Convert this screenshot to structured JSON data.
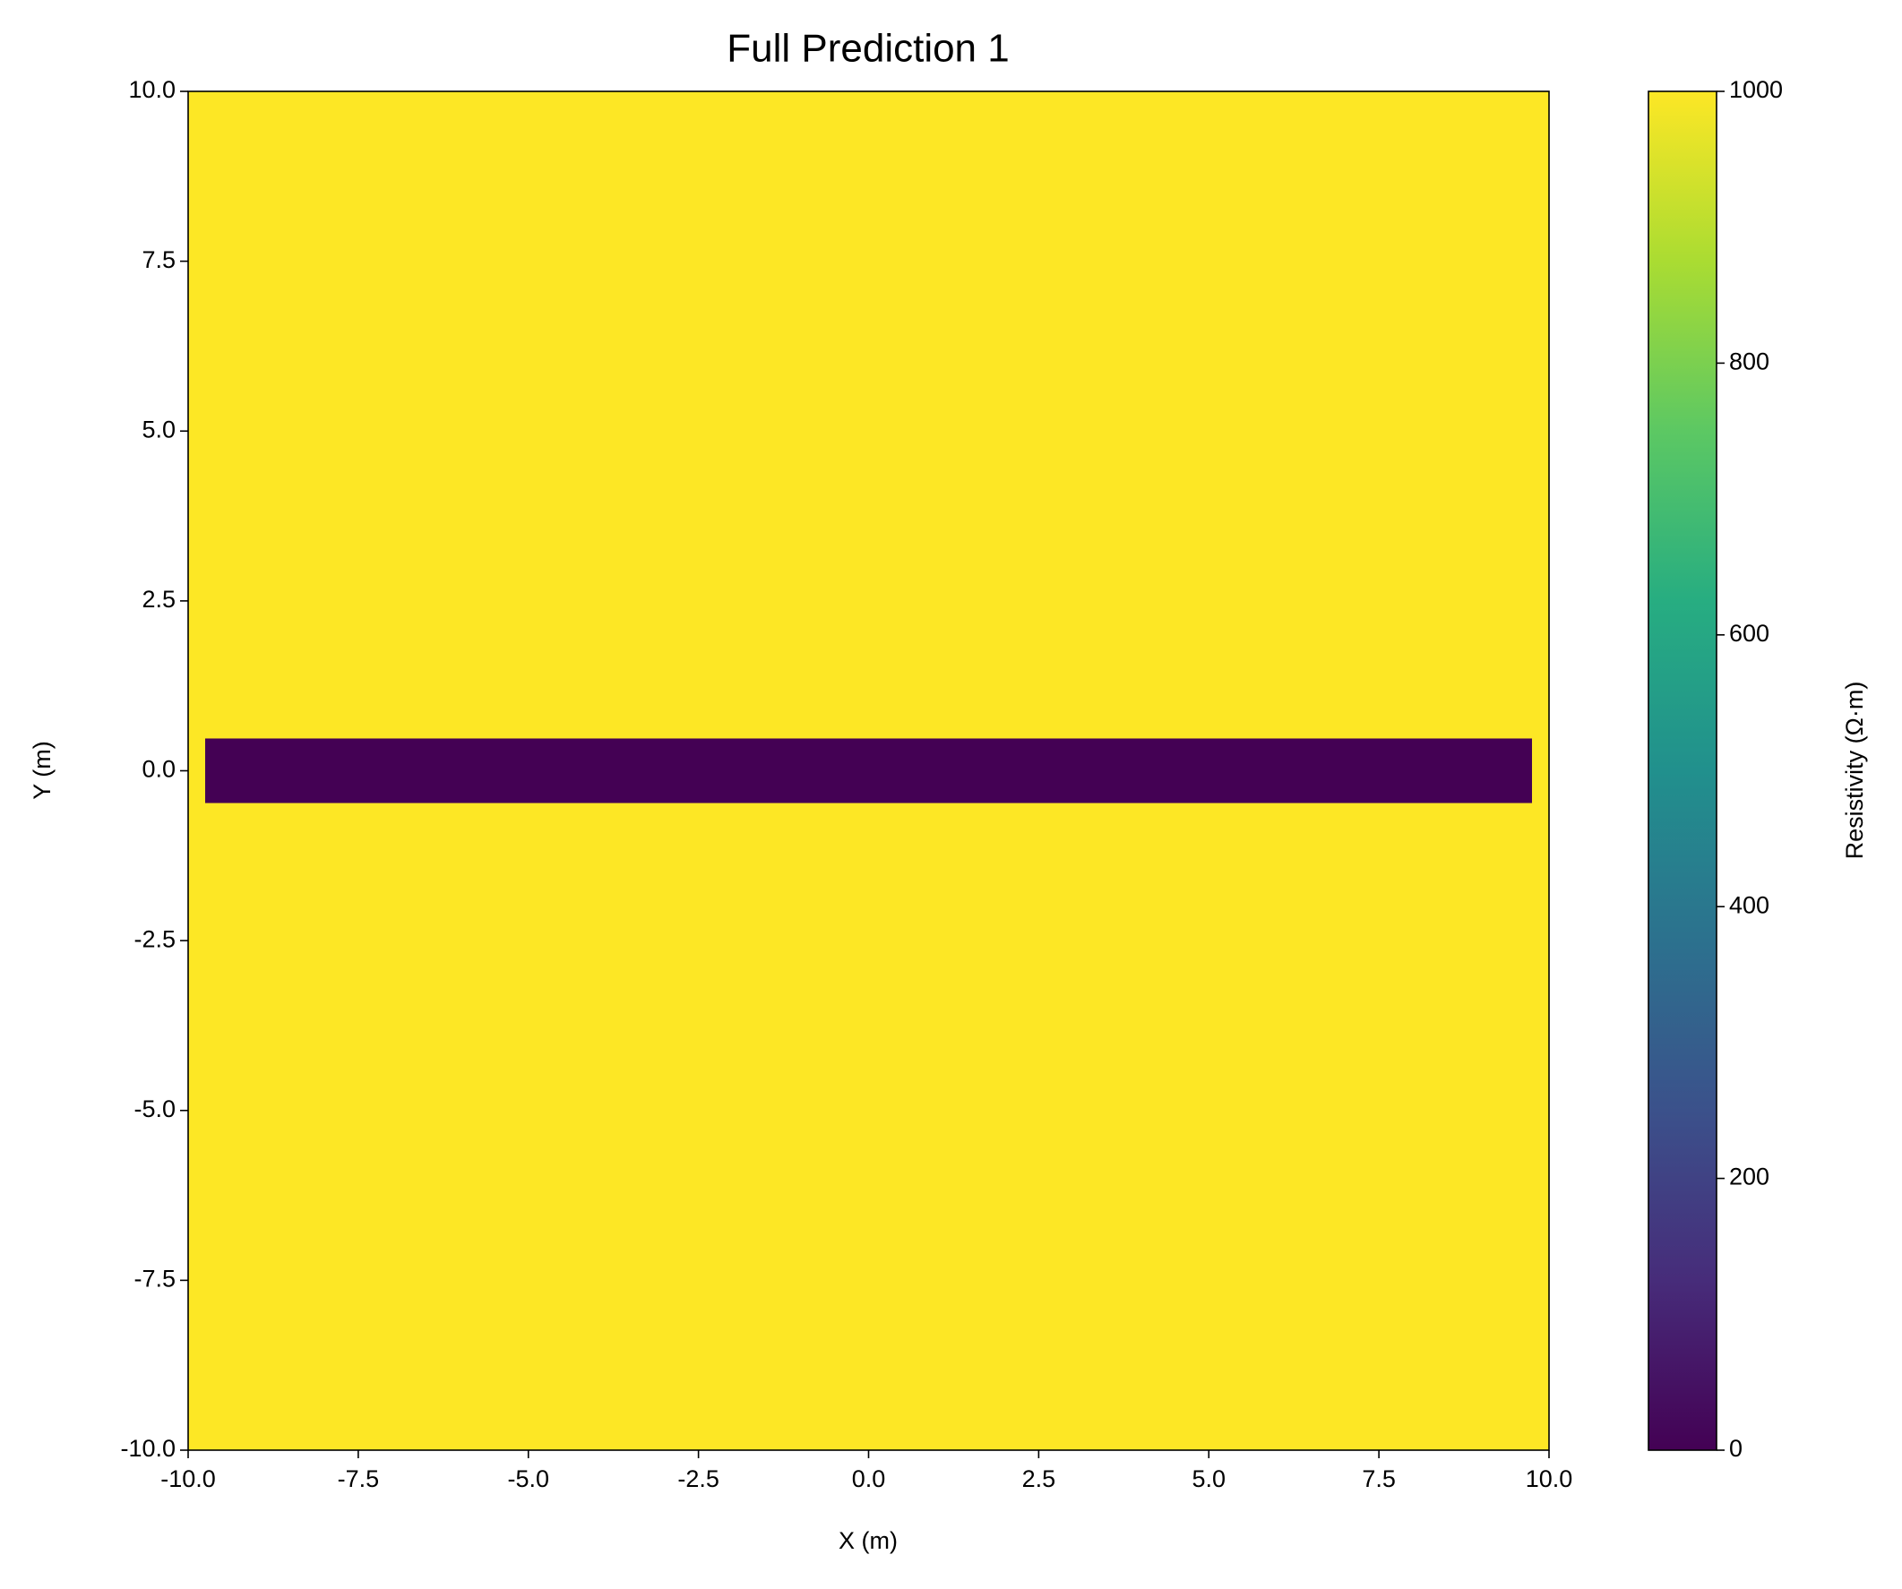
{
  "chart_data": {
    "type": "heatmap",
    "title": "Full Prediction 1",
    "x_label": "X (m)",
    "y_label": "Y (m)",
    "colorbar_label": "Resistivity (Ω·m)",
    "colormap": "viridis",
    "cells": [
      {
        "x": [
          -10,
          10
        ],
        "y": [
          -10,
          10
        ],
        "value": 1000
      },
      {
        "x": [
          -9.75,
          9.75
        ],
        "y": [
          -0.475,
          0.475
        ],
        "value": 0
      }
    ],
    "xlim": [
      -10,
      10
    ],
    "ylim": [
      -10,
      10
    ],
    "clim": [
      0,
      1000
    ],
    "xticks": [
      {
        "value": -10,
        "label": "-10.0"
      },
      {
        "value": -7.5,
        "label": "-7.5"
      },
      {
        "value": -5,
        "label": "-5.0"
      },
      {
        "value": -2.5,
        "label": "-2.5"
      },
      {
        "value": 0,
        "label": "0.0"
      },
      {
        "value": 2.5,
        "label": "2.5"
      },
      {
        "value": 5,
        "label": "5.0"
      },
      {
        "value": 7.5,
        "label": "7.5"
      },
      {
        "value": 10,
        "label": "10.0"
      }
    ],
    "yticks": [
      {
        "value": -10,
        "label": "-10.0"
      },
      {
        "value": -7.5,
        "label": "-7.5"
      },
      {
        "value": -5,
        "label": "-5.0"
      },
      {
        "value": -2.5,
        "label": "-2.5"
      },
      {
        "value": 0,
        "label": "0.0"
      },
      {
        "value": 2.5,
        "label": "2.5"
      },
      {
        "value": 5,
        "label": "5.0"
      },
      {
        "value": 7.5,
        "label": "7.5"
      },
      {
        "value": 10,
        "label": "10.0"
      }
    ],
    "cticks": [
      0,
      200,
      400,
      600,
      800,
      1000
    ]
  }
}
